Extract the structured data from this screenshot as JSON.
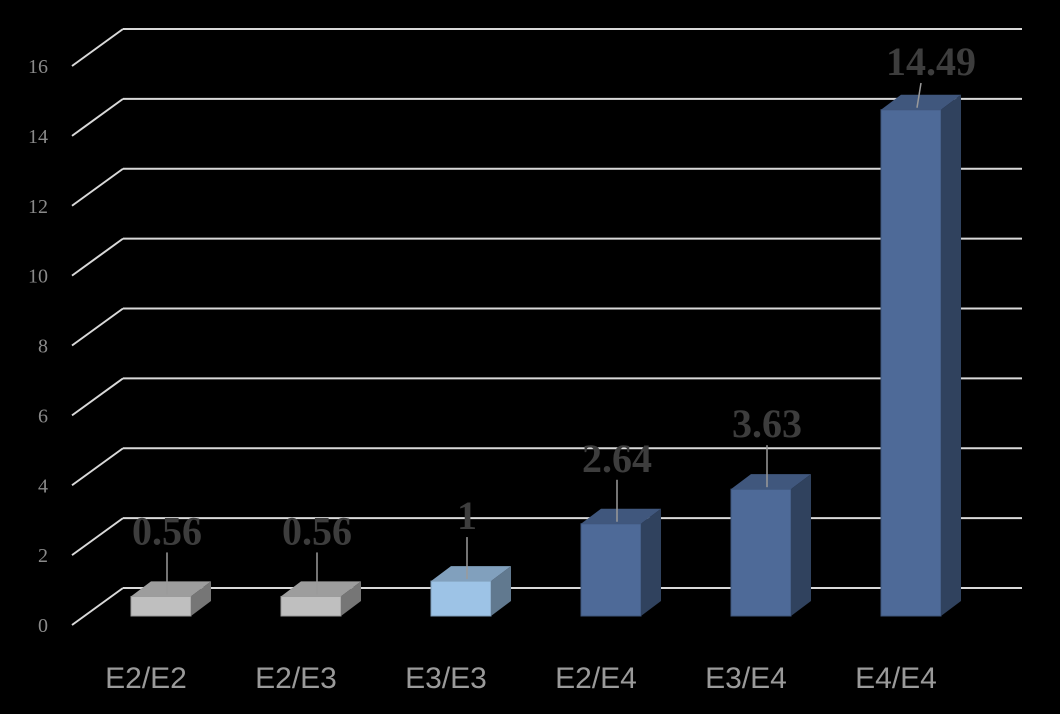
{
  "chart_data": {
    "type": "bar",
    "title": "",
    "xlabel": "",
    "ylabel": "",
    "categories": [
      "E2/E2",
      "E2/E3",
      "E3/E3",
      "E2/E4",
      "E3/E4",
      "E4/E4"
    ],
    "values": [
      0.56,
      0.56,
      1,
      2.64,
      3.63,
      14.49
    ],
    "data_labels": [
      "0.56",
      "0.56",
      "1",
      "2.64",
      "3.63",
      "14.49"
    ],
    "y_ticks": [
      "0",
      "2",
      "4",
      "6",
      "8",
      "10",
      "12",
      "14",
      "16"
    ],
    "ylim": [
      0,
      16
    ],
    "grid": true,
    "legend": "none",
    "style": "3d-column",
    "colors": {
      "background": "#000000",
      "gridline": "#d9d9d9",
      "bars": [
        "#bfbfbf",
        "#bfbfbf",
        "#9dc3e6",
        "#4e6a98",
        "#4e6a98",
        "#4e6a98"
      ],
      "tick_text": "#8a8a8a",
      "category_text": "#9a9a9a",
      "data_label_text": "#3d3d3d"
    }
  }
}
